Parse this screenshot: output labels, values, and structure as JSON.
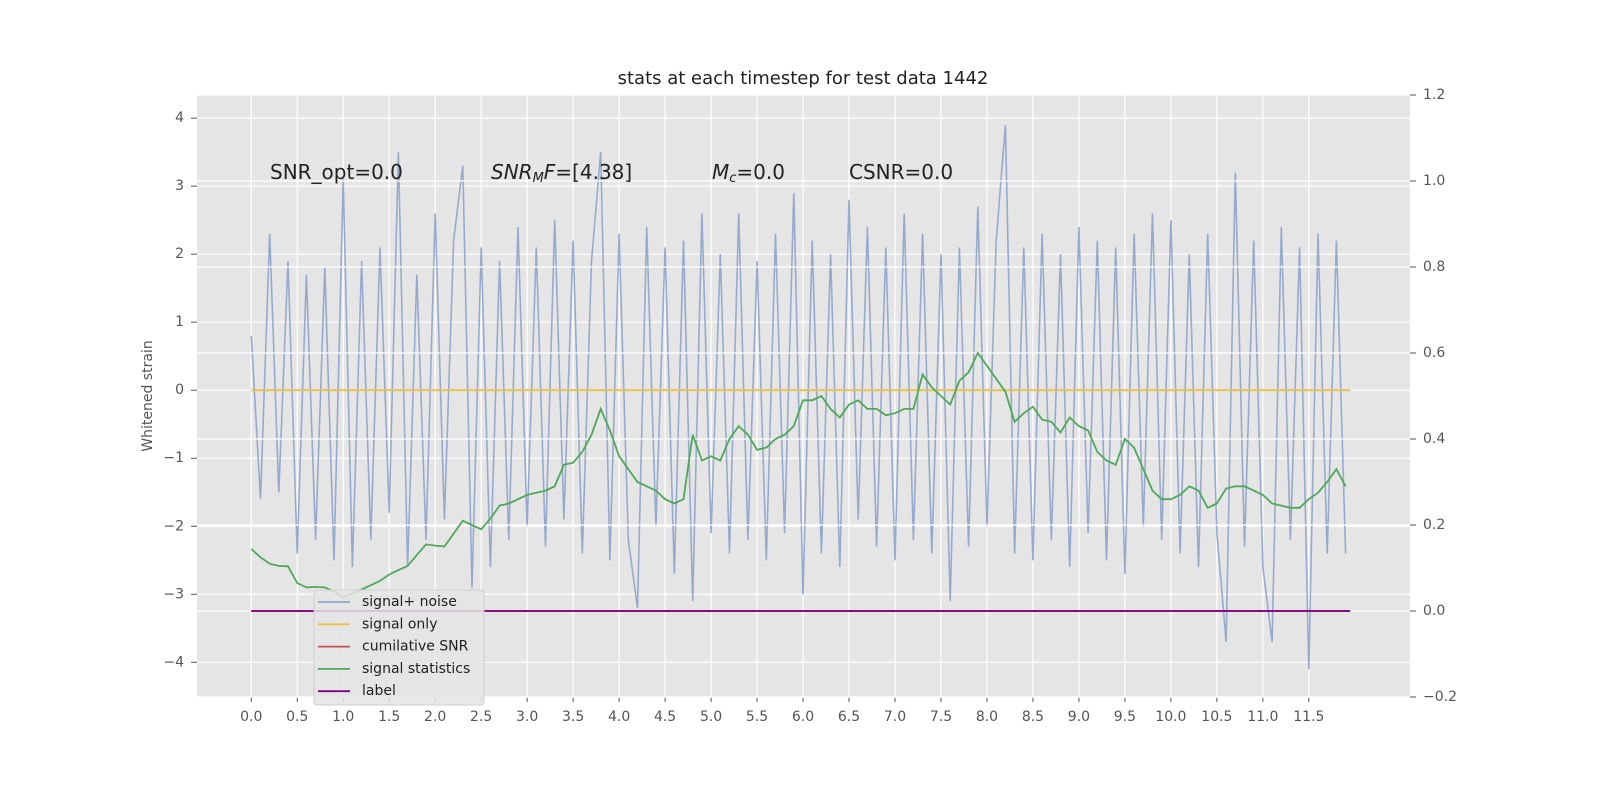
{
  "chart_data": {
    "type": "line",
    "title": "stats at each timestep for test data 1442",
    "ylabel": "Whitened strain",
    "annotations": [
      [
        {
          "text": "SNR_opt=0.0"
        }
      ],
      [
        {
          "text": "SNR",
          "italic": true
        },
        {
          "text": "M",
          "italic": true,
          "sub": true
        },
        {
          "text": "F",
          "italic": true
        },
        {
          "text": "=[4.38]"
        }
      ],
      [
        {
          "text": "M",
          "italic": true
        },
        {
          "text": "c",
          "italic": true,
          "sub": true
        },
        {
          "text": "=0.0"
        }
      ],
      [
        {
          "text": "CSNR=0.0"
        }
      ]
    ],
    "x": [
      0.0,
      0.1,
      0.2,
      0.3,
      0.4,
      0.5,
      0.6,
      0.7,
      0.8,
      0.9,
      1.0,
      1.1,
      1.2,
      1.3,
      1.4,
      1.5,
      1.6,
      1.7,
      1.8,
      1.9,
      2.0,
      2.1,
      2.2,
      2.3,
      2.4,
      2.5,
      2.6,
      2.7,
      2.8,
      2.9,
      3.0,
      3.1,
      3.2,
      3.3,
      3.4,
      3.5,
      3.6,
      3.7,
      3.8,
      3.9,
      4.0,
      4.1,
      4.2,
      4.3,
      4.4,
      4.5,
      4.6,
      4.7,
      4.8,
      4.9,
      5.0,
      5.1,
      5.2,
      5.3,
      5.4,
      5.5,
      5.6,
      5.7,
      5.8,
      5.9,
      6.0,
      6.1,
      6.2,
      6.3,
      6.4,
      6.5,
      6.6,
      6.7,
      6.8,
      6.9,
      7.0,
      7.1,
      7.2,
      7.3,
      7.4,
      7.5,
      7.6,
      7.7,
      7.8,
      7.9,
      8.0,
      8.1,
      8.2,
      8.3,
      8.4,
      8.5,
      8.6,
      8.7,
      8.8,
      8.9,
      9.0,
      9.1,
      9.2,
      9.3,
      9.4,
      9.5,
      9.6,
      9.7,
      9.8,
      9.9,
      10.0,
      10.1,
      10.2,
      10.3,
      10.4,
      10.5,
      10.6,
      10.7,
      10.8,
      10.9,
      11.0,
      11.1,
      11.2,
      11.3,
      11.4,
      11.5,
      11.6,
      11.7,
      11.8,
      11.9
    ],
    "series": [
      {
        "name": "signal+ noise",
        "color": "#92a6cc",
        "values": [
          0.8,
          -1.6,
          2.3,
          -1.5,
          1.9,
          -2.4,
          1.7,
          -2.2,
          1.8,
          -2.5,
          3.1,
          -2.6,
          1.9,
          -2.2,
          2.1,
          -1.8,
          3.5,
          -2.6,
          1.7,
          -2.2,
          2.6,
          -1.9,
          2.2,
          3.3,
          -2.9,
          2.1,
          -2.6,
          1.9,
          -2.2,
          2.4,
          -2.0,
          2.1,
          -2.3,
          2.5,
          -1.9,
          2.2,
          -2.4,
          1.9,
          3.5,
          -2.5,
          2.3,
          -2.2,
          -3.2,
          2.4,
          -2.0,
          2.1,
          -2.7,
          2.2,
          -3.1,
          2.6,
          -2.1,
          2.0,
          -2.4,
          2.6,
          -2.2,
          1.9,
          -2.5,
          2.3,
          -2.1,
          2.9,
          -3.0,
          2.2,
          -2.4,
          2.0,
          -2.6,
          2.8,
          -1.9,
          2.4,
          -2.3,
          2.1,
          -2.5,
          2.6,
          -2.2,
          2.3,
          -2.4,
          2.0,
          -3.1,
          2.1,
          -2.3,
          2.7,
          -2.0,
          2.2,
          3.9,
          -2.4,
          2.1,
          -2.5,
          2.3,
          -2.2,
          2.0,
          -2.6,
          2.4,
          -2.1,
          2.2,
          -2.5,
          2.1,
          -2.7,
          2.3,
          -2.0,
          2.6,
          -2.2,
          2.5,
          -2.4,
          2.0,
          -2.6,
          2.3,
          -2.1,
          -3.7,
          3.2,
          -2.3,
          2.2,
          -2.6,
          -3.7,
          2.4,
          -2.2,
          2.1,
          -4.1,
          2.3,
          -2.4,
          2.2,
          -2.4
        ]
      },
      {
        "name": "signal only",
        "color": "#e8c24a",
        "x": [
          0.0,
          11.95
        ],
        "values": [
          0,
          0
        ]
      },
      {
        "name": "cumilative SNR",
        "color": "#c44e52",
        "axis": "y2",
        "x": [
          0.0,
          11.95
        ],
        "values": [
          0,
          0
        ]
      },
      {
        "name": "signal statistics",
        "color": "#4fa85a",
        "axis": "y2",
        "values": [
          0.144,
          0.125,
          0.11,
          0.105,
          0.104,
          0.065,
          0.055,
          0.056,
          0.055,
          0.045,
          0.032,
          0.04,
          0.05,
          0.06,
          0.07,
          0.085,
          0.095,
          0.105,
          0.13,
          0.155,
          0.152,
          0.15,
          0.18,
          0.21,
          0.2,
          0.19,
          0.215,
          0.245,
          0.25,
          0.26,
          0.27,
          0.275,
          0.28,
          0.29,
          0.34,
          0.345,
          0.37,
          0.41,
          0.47,
          0.42,
          0.36,
          0.33,
          0.3,
          0.29,
          0.28,
          0.26,
          0.25,
          0.26,
          0.41,
          0.35,
          0.36,
          0.35,
          0.4,
          0.43,
          0.41,
          0.375,
          0.38,
          0.4,
          0.41,
          0.43,
          0.49,
          0.49,
          0.5,
          0.47,
          0.45,
          0.48,
          0.49,
          0.47,
          0.47,
          0.455,
          0.46,
          0.47,
          0.47,
          0.55,
          0.52,
          0.5,
          0.48,
          0.535,
          0.555,
          0.6,
          0.57,
          0.54,
          0.51,
          0.44,
          0.46,
          0.475,
          0.445,
          0.44,
          0.415,
          0.45,
          0.43,
          0.42,
          0.37,
          0.35,
          0.34,
          0.4,
          0.38,
          0.33,
          0.28,
          0.26,
          0.26,
          0.27,
          0.29,
          0.28,
          0.24,
          0.25,
          0.285,
          0.29,
          0.29,
          0.28,
          0.27,
          0.25,
          0.245,
          0.24,
          0.24,
          0.26,
          0.275,
          0.3,
          0.33,
          0.29
        ]
      },
      {
        "name": "label",
        "color": "#800080",
        "axis": "y2",
        "x": [
          0.0,
          11.95
        ],
        "values": [
          0,
          0
        ]
      }
    ],
    "xlim": [
      -0.59,
      12.6
    ],
    "ylim": [
      -4.51,
      4.34
    ],
    "y2lim": [
      -0.2,
      1.2
    ],
    "xticks": [
      {
        "value": 0,
        "label": "0.0"
      },
      {
        "value": 0.5,
        "label": "0.5"
      },
      {
        "value": 1,
        "label": "1.0"
      },
      {
        "value": 1.5,
        "label": "1.5"
      },
      {
        "value": 2,
        "label": "2.0"
      },
      {
        "value": 2.5,
        "label": "2.5"
      },
      {
        "value": 3,
        "label": "3.0"
      },
      {
        "value": 3.5,
        "label": "3.5"
      },
      {
        "value": 4,
        "label": "4.0"
      },
      {
        "value": 4.5,
        "label": "4.5"
      },
      {
        "value": 5,
        "label": "5.0"
      },
      {
        "value": 5.5,
        "label": "5.5"
      },
      {
        "value": 6,
        "label": "6.0"
      },
      {
        "value": 6.5,
        "label": "6.5"
      },
      {
        "value": 7,
        "label": "7.0"
      },
      {
        "value": 7.5,
        "label": "7.5"
      },
      {
        "value": 8,
        "label": "8.0"
      },
      {
        "value": 8.5,
        "label": "8.5"
      },
      {
        "value": 9,
        "label": "9.0"
      },
      {
        "value": 9.5,
        "label": "9.5"
      },
      {
        "value": 10,
        "label": "10.0"
      },
      {
        "value": 10.5,
        "label": "10.5"
      },
      {
        "value": 11,
        "label": "11.0"
      },
      {
        "value": 11.5,
        "label": "11.5"
      }
    ],
    "yticks": [
      {
        "value": -4,
        "label": "−4"
      },
      {
        "value": -3,
        "label": "−3"
      },
      {
        "value": -2,
        "label": "−2"
      },
      {
        "value": -1,
        "label": "−1"
      },
      0,
      1,
      2,
      3,
      4
    ],
    "y2ticks": [
      {
        "value": -0.2,
        "label": "−0.2"
      },
      {
        "value": 0,
        "label": "0.0"
      },
      {
        "value": 0.2,
        "label": "0.2"
      },
      {
        "value": 0.4,
        "label": "0.4"
      },
      {
        "value": 0.6,
        "label": "0.6"
      },
      {
        "value": 0.8,
        "label": "0.8"
      },
      {
        "value": 1.0,
        "label": "1.0"
      },
      {
        "value": 1.2,
        "label": "1.2"
      }
    ],
    "grid": true,
    "legend": "lower left",
    "background": "#e5e5e5"
  }
}
